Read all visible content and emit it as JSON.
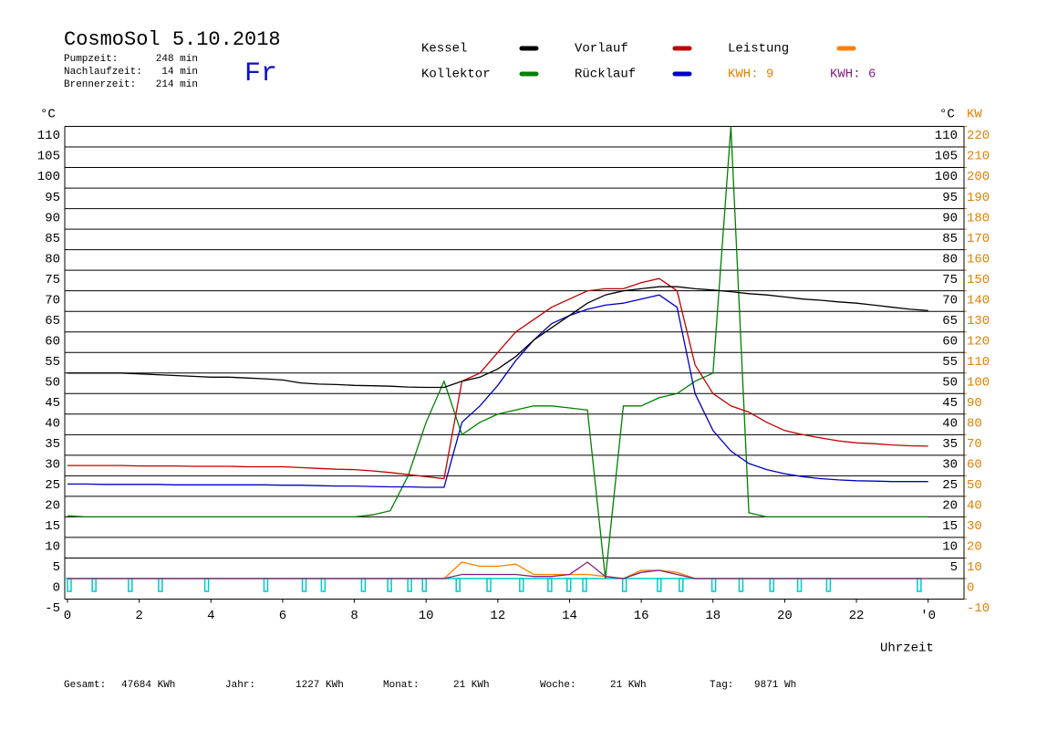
{
  "chart_data": {
    "type": "line",
    "title": "CosmoSol 5.10.2018",
    "day": "Fr",
    "stats": [
      {
        "label": "Pumpzeit:",
        "value": "248 min"
      },
      {
        "label": "Nachlaufzeit:",
        "value": "14 min"
      },
      {
        "label": "Brennerzeit:",
        "value": "214 min"
      }
    ],
    "y_unit": "°C",
    "y2_unit": "KW",
    "xlabel": "Uhrzeit",
    "kwh_labels": [
      {
        "text": "KWH: 9",
        "color": "#e08000"
      },
      {
        "text": "KWH: 6",
        "color": "#802080"
      }
    ],
    "totals": [
      {
        "label": "Gesamt:",
        "value": "47684 KWh"
      },
      {
        "label": "Jahr:",
        "value": "1227 KWh"
      },
      {
        "label": "Monat:",
        "value": "21 KWh"
      },
      {
        "label": "Woche:",
        "value": "21 KWh"
      },
      {
        "label": "Tag:",
        "value": "9871 Wh"
      }
    ],
    "xlim": [
      0,
      25
    ],
    "xticks": [
      0,
      2,
      4,
      6,
      8,
      10,
      12,
      14,
      16,
      18,
      20,
      22,
      {
        "value": 24,
        "label": "'0"
      }
    ],
    "ylim": [
      -5,
      110
    ],
    "yticks": [
      -5,
      0,
      5,
      10,
      15,
      20,
      25,
      30,
      35,
      40,
      45,
      50,
      55,
      60,
      65,
      70,
      75,
      80,
      85,
      90,
      95,
      100,
      105,
      110
    ],
    "y2lim": [
      -10,
      220
    ],
    "y2ticks": [
      -10,
      0,
      10,
      20,
      30,
      40,
      50,
      60,
      70,
      80,
      90,
      100,
      110,
      120,
      130,
      140,
      150,
      160,
      170,
      180,
      190,
      200,
      210,
      220
    ],
    "grid": true,
    "x": [
      0,
      0.5,
      1,
      1.5,
      2,
      2.5,
      3,
      3.5,
      4,
      4.5,
      5,
      5.5,
      6,
      6.5,
      7,
      7.5,
      8,
      8.5,
      9,
      9.5,
      10,
      10.5,
      11,
      11.5,
      12,
      12.5,
      13,
      13.5,
      14,
      14.5,
      15,
      15.5,
      16,
      16.5,
      17,
      17.5,
      18,
      18.5,
      19,
      19.5,
      20,
      20.5,
      21,
      21.5,
      22,
      22.5,
      23,
      23.5,
      24
    ],
    "series": [
      {
        "name": "Kollektor",
        "color": "#008000",
        "values": [
          15.3,
          15,
          15,
          15,
          15,
          15,
          15,
          15,
          15,
          15,
          15,
          15,
          15,
          15,
          15,
          15,
          15,
          15.5,
          16.5,
          25,
          38,
          48,
          35,
          38,
          40,
          41,
          42,
          42,
          41.5,
          41,
          0,
          42,
          42,
          44,
          45,
          48,
          50,
          110,
          16,
          15,
          15,
          15,
          15,
          15,
          15,
          15,
          15,
          15,
          15
        ]
      },
      {
        "name": "Vorlauf",
        "color": "#c00000",
        "values": [
          27.5,
          27.5,
          27.5,
          27.5,
          27.4,
          27.4,
          27.4,
          27.3,
          27.3,
          27.3,
          27.2,
          27.2,
          27.2,
          27,
          26.8,
          26.6,
          26.5,
          26.2,
          25.8,
          25.3,
          24.8,
          24.3,
          48,
          50,
          55,
          60,
          63,
          66,
          68,
          70,
          70.5,
          70.5,
          72,
          73,
          70,
          52,
          45,
          42,
          40.5,
          38,
          36,
          35,
          34.2,
          33.5,
          33,
          32.8,
          32.5,
          32.3,
          32.2
        ]
      },
      {
        "name": "Rücklauf",
        "color": "#0000c0",
        "values": [
          23,
          23,
          22.9,
          22.9,
          22.9,
          22.9,
          22.8,
          22.8,
          22.8,
          22.8,
          22.8,
          22.8,
          22.7,
          22.7,
          22.6,
          22.5,
          22.5,
          22.4,
          22.3,
          22.3,
          22.2,
          22.2,
          38,
          42,
          47,
          53,
          58,
          62,
          64,
          65.5,
          66.5,
          67,
          68,
          69,
          66,
          45,
          36,
          31,
          28,
          26.5,
          25.5,
          24.8,
          24.3,
          24,
          23.8,
          23.7,
          23.6,
          23.6,
          23.6
        ]
      },
      {
        "name": "Kessel",
        "color": "#000000",
        "values": [
          50,
          50,
          50,
          50,
          49.8,
          49.6,
          49.4,
          49.2,
          49,
          49,
          48.8,
          48.6,
          48.3,
          47.6,
          47.3,
          47.2,
          47,
          46.9,
          46.8,
          46.6,
          46.5,
          46.5,
          48,
          49,
          51,
          54,
          58,
          61,
          64,
          67,
          69,
          70,
          70.5,
          71,
          71,
          70.5,
          70.2,
          69.8,
          69.3,
          69,
          68.5,
          68,
          67.7,
          67.3,
          67,
          66.5,
          66,
          65.5,
          65.2
        ]
      },
      {
        "name": "Leistung",
        "color": "#ff8000",
        "axis": "y2",
        "values": [
          0,
          0,
          0,
          0,
          0,
          0,
          0,
          0,
          0,
          0,
          0,
          0,
          0,
          0,
          0,
          0,
          0,
          0,
          0,
          0,
          0,
          0,
          8,
          6,
          6,
          7,
          2,
          2,
          2,
          2,
          1,
          0,
          4,
          4,
          3,
          0,
          0,
          0,
          0,
          0,
          0,
          0,
          0,
          0,
          0,
          0,
          0,
          0,
          0
        ]
      },
      {
        "color": "#802080",
        "axis": "y2",
        "values": [
          0,
          0,
          0,
          0,
          0,
          0,
          0,
          0,
          0,
          0,
          0,
          0,
          0,
          0,
          0,
          0,
          0,
          0,
          0,
          0,
          0,
          0,
          2,
          2,
          2,
          2,
          1,
          1,
          2,
          8,
          1,
          0,
          3,
          4,
          2,
          0,
          0,
          0,
          0,
          0,
          0,
          0,
          0,
          0,
          0,
          0,
          0,
          0,
          0
        ]
      }
    ],
    "pump_color": "#00c8c8",
    "pump_starts": [
      0,
      0.69,
      1.7,
      2.54,
      3.83,
      5.48,
      6.55,
      7.08,
      8.2,
      8.93,
      9.49,
      9.9,
      10.84,
      11.7,
      12.61,
      13.4,
      13.93,
      14.37,
      15.48,
      16.45,
      17.06,
      17.97,
      18.73,
      19.59,
      20.36,
      21.17,
      23.7
    ]
  }
}
